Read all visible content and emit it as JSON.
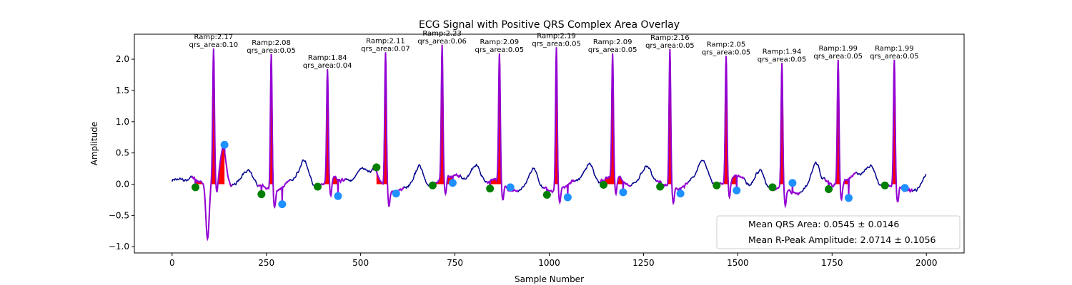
{
  "chart_data": {
    "type": "line",
    "title": "ECG Signal with Positive QRS Complex Area Overlay",
    "xlabel": "Sample Number",
    "ylabel": "Amplitude",
    "xlim": [
      -100,
      2100
    ],
    "ylim": [
      -1.1,
      2.4
    ],
    "xticks": [
      0,
      250,
      500,
      750,
      1000,
      1250,
      1500,
      1750,
      2000
    ],
    "yticks": [
      -1.0,
      -0.5,
      0.0,
      0.5,
      1.0,
      1.5,
      2.0
    ],
    "ytick_labels": [
      "−1.0",
      "−0.5",
      "0.0",
      "0.5",
      "1.0",
      "1.5",
      "2.0"
    ],
    "grid": false,
    "colors": {
      "signal": "#00008b",
      "qrs_segment": "#9400d3",
      "area_fill": "#ff0000",
      "onset_marker": "#008000",
      "offset_marker": "#1e90ff"
    },
    "beats": [
      {
        "onset": 62,
        "onset_amp": -0.05,
        "r_peak": 110,
        "r_amp": 2.17,
        "offset": 139,
        "offset_amp": 0.63,
        "ramp_label": "Ramp:2.17",
        "area_label": "qrs_area:0.10"
      },
      {
        "onset": 237,
        "onset_amp": -0.16,
        "r_peak": 263,
        "r_amp": 2.08,
        "offset": 292,
        "offset_amp": -0.32,
        "ramp_label": "Ramp:2.08",
        "area_label": "qrs_area:0.05"
      },
      {
        "onset": 386,
        "onset_amp": -0.04,
        "r_peak": 412,
        "r_amp": 1.84,
        "offset": 440,
        "offset_amp": -0.19,
        "ramp_label": "Ramp:1.84",
        "area_label": "qrs_area:0.04"
      },
      {
        "onset": 542,
        "onset_amp": 0.27,
        "r_peak": 566,
        "r_amp": 2.11,
        "offset": 594,
        "offset_amp": -0.15,
        "ramp_label": "Ramp:2.11",
        "area_label": "qrs_area:0.07"
      },
      {
        "onset": 691,
        "onset_amp": -0.02,
        "r_peak": 716,
        "r_amp": 2.23,
        "offset": 744,
        "offset_amp": 0.02,
        "ramp_label": "Ramp:2.23",
        "area_label": "qrs_area:0.06"
      },
      {
        "onset": 843,
        "onset_amp": -0.07,
        "r_peak": 868,
        "r_amp": 2.09,
        "offset": 897,
        "offset_amp": -0.05,
        "ramp_label": "Ramp:2.09",
        "area_label": "qrs_area:0.05"
      },
      {
        "onset": 994,
        "onset_amp": -0.17,
        "r_peak": 1019,
        "r_amp": 2.19,
        "offset": 1049,
        "offset_amp": -0.21,
        "ramp_label": "Ramp:2.19",
        "area_label": "qrs_area:0.05"
      },
      {
        "onset": 1144,
        "onset_amp": -0.01,
        "r_peak": 1168,
        "r_amp": 2.09,
        "offset": 1196,
        "offset_amp": -0.13,
        "ramp_label": "Ramp:2.09",
        "area_label": "qrs_area:0.05"
      },
      {
        "onset": 1294,
        "onset_amp": -0.04,
        "r_peak": 1320,
        "r_amp": 2.16,
        "offset": 1348,
        "offset_amp": -0.15,
        "ramp_label": "Ramp:2.16",
        "area_label": "qrs_area:0.05"
      },
      {
        "onset": 1444,
        "onset_amp": -0.02,
        "r_peak": 1469,
        "r_amp": 2.05,
        "offset": 1497,
        "offset_amp": -0.1,
        "ramp_label": "Ramp:2.05",
        "area_label": "qrs_area:0.05"
      },
      {
        "onset": 1592,
        "onset_amp": -0.05,
        "r_peak": 1617,
        "r_amp": 1.94,
        "offset": 1645,
        "offset_amp": 0.02,
        "ramp_label": "Ramp:1.94",
        "area_label": "qrs_area:0.05"
      },
      {
        "onset": 1741,
        "onset_amp": -0.08,
        "r_peak": 1766,
        "r_amp": 1.99,
        "offset": 1794,
        "offset_amp": -0.22,
        "ramp_label": "Ramp:1.99",
        "area_label": "qrs_area:0.05"
      },
      {
        "onset": 1890,
        "onset_amp": -0.02,
        "r_peak": 1915,
        "r_amp": 1.99,
        "offset": 1943,
        "offset_amp": -0.06,
        "ramp_label": "Ramp:1.99",
        "area_label": "qrs_area:0.05"
      }
    ],
    "signal_samples": 2000,
    "legend": {
      "placement": "lower-right",
      "entries": [
        "Mean QRS Area: 0.0545 ± 0.0146",
        "Mean R-Peak Amplitude: 2.0714 ± 0.1056"
      ]
    }
  }
}
